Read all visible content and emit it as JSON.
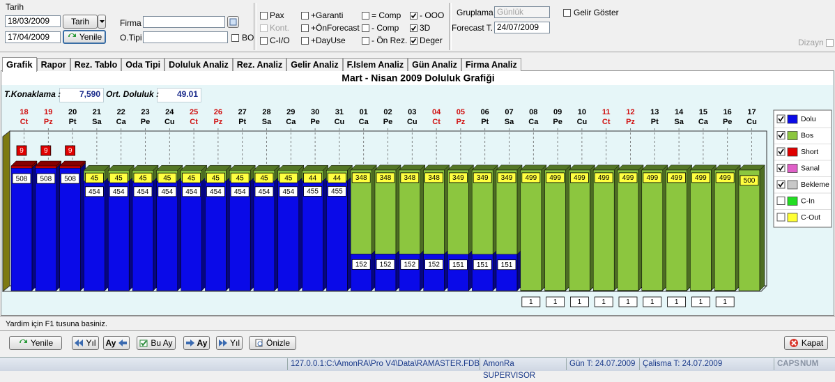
{
  "toolbar": {
    "date_label": "Tarih",
    "date_from": "18/03/2009",
    "date_to": "17/04/2009",
    "date_button": "Tarih",
    "refresh_button": "Yenile",
    "firma_label": "Firma",
    "otipi_label": "O.Tipi",
    "bo_label": "BO",
    "options": [
      {
        "label": "Pax",
        "checked": false,
        "enabled": true
      },
      {
        "label": "Kont.",
        "checked": false,
        "enabled": false
      },
      {
        "label": "C-I/O",
        "checked": false,
        "enabled": true
      },
      {
        "label": "+Garanti",
        "checked": false,
        "enabled": true
      },
      {
        "label": "+ÖnForecast",
        "checked": false,
        "enabled": true
      },
      {
        "label": "+DayUse",
        "checked": false,
        "enabled": true
      },
      {
        "label": "= Comp",
        "checked": false,
        "enabled": true
      },
      {
        "label": "- Comp",
        "checked": false,
        "enabled": true
      },
      {
        "label": "- Ön Rez.",
        "checked": false,
        "enabled": true
      },
      {
        "label": "- OOO",
        "checked": true,
        "enabled": true
      },
      {
        "label": "3D",
        "checked": true,
        "enabled": true
      },
      {
        "label": "Deger",
        "checked": true,
        "enabled": true
      }
    ],
    "grouping_label": "Gruplama",
    "grouping_value": "Günlük",
    "revenue_label": "Gelir Göster",
    "forecast_label": "Forecast T.",
    "forecast_date": "24/07/2009",
    "design_label": "Dizayn"
  },
  "tabs": [
    {
      "label": "Grafik",
      "selected": true
    },
    {
      "label": "Rapor",
      "selected": false
    },
    {
      "label": "Rez. Tablo",
      "selected": false
    },
    {
      "label": "Oda Tipi",
      "selected": false
    },
    {
      "label": "Doluluk Analiz",
      "selected": false
    },
    {
      "label": "Rez. Analiz",
      "selected": false
    },
    {
      "label": "Gelir Analiz",
      "selected": false
    },
    {
      "label": "F.Islem Analiz",
      "selected": false
    },
    {
      "label": "Gün Analiz",
      "selected": false
    },
    {
      "label": "Firma Analiz",
      "selected": false
    }
  ],
  "chart": {
    "type": "bar3d_stacked",
    "title": "Mart - Nisan 2009 Doluluk Grafiği",
    "stats": [
      {
        "label": "T.Konaklama :",
        "value": "7,590"
      },
      {
        "label": "Ort. Doluluk :",
        "value": "49.01"
      }
    ],
    "days": [
      {
        "day": "18",
        "weekday": "Ct",
        "color": "#d01010"
      },
      {
        "day": "19",
        "weekday": "Pz",
        "color": "#d01010"
      },
      {
        "day": "20",
        "weekday": "Pt",
        "color": "#000000"
      },
      {
        "day": "21",
        "weekday": "Sa",
        "color": "#000000"
      },
      {
        "day": "22",
        "weekday": "Ca",
        "color": "#000000"
      },
      {
        "day": "23",
        "weekday": "Pe",
        "color": "#000000"
      },
      {
        "day": "24",
        "weekday": "Cu",
        "color": "#000000"
      },
      {
        "day": "25",
        "weekday": "Ct",
        "color": "#d01010"
      },
      {
        "day": "26",
        "weekday": "Pz",
        "color": "#d01010"
      },
      {
        "day": "27",
        "weekday": "Pt",
        "color": "#000000"
      },
      {
        "day": "28",
        "weekday": "Sa",
        "color": "#000000"
      },
      {
        "day": "29",
        "weekday": "Ca",
        "color": "#000000"
      },
      {
        "day": "30",
        "weekday": "Pe",
        "color": "#000000"
      },
      {
        "day": "31",
        "weekday": "Cu",
        "color": "#000000"
      },
      {
        "day": "01",
        "weekday": "Ca",
        "color": "#000000"
      },
      {
        "day": "02",
        "weekday": "Pe",
        "color": "#000000"
      },
      {
        "day": "03",
        "weekday": "Cu",
        "color": "#000000"
      },
      {
        "day": "04",
        "weekday": "Ct",
        "color": "#d01010"
      },
      {
        "day": "05",
        "weekday": "Pz",
        "color": "#d01010"
      },
      {
        "day": "06",
        "weekday": "Pt",
        "color": "#000000"
      },
      {
        "day": "07",
        "weekday": "Sa",
        "color": "#000000"
      },
      {
        "day": "08",
        "weekday": "Ca",
        "color": "#000000"
      },
      {
        "day": "09",
        "weekday": "Pe",
        "color": "#000000"
      },
      {
        "day": "10",
        "weekday": "Cu",
        "color": "#000000"
      },
      {
        "day": "11",
        "weekday": "Ct",
        "color": "#d01010"
      },
      {
        "day": "12",
        "weekday": "Pz",
        "color": "#d01010"
      },
      {
        "day": "13",
        "weekday": "Pt",
        "color": "#000000"
      },
      {
        "day": "14",
        "weekday": "Sa",
        "color": "#000000"
      },
      {
        "day": "15",
        "weekday": "Ca",
        "color": "#000000"
      },
      {
        "day": "16",
        "weekday": "Pe",
        "color": "#000000"
      },
      {
        "day": "17",
        "weekday": "Cu",
        "color": "#000000"
      }
    ],
    "series": [
      {
        "name": "Dolu",
        "color": "#0a0ae8",
        "checked": true,
        "label_fill": "#ffffff",
        "label_text_color": "#000000",
        "values": [
          508,
          508,
          508,
          454,
          454,
          454,
          454,
          454,
          454,
          454,
          454,
          454,
          455,
          455,
          152,
          152,
          152,
          152,
          151,
          151,
          151,
          1,
          1,
          1,
          1,
          1,
          1,
          1,
          1,
          1,
          null
        ]
      },
      {
        "name": "Bos",
        "color": "#8cc63f",
        "checked": true,
        "label_fill": "#ffff40",
        "label_text_color": "#000000",
        "values": [
          null,
          null,
          null,
          45,
          45,
          45,
          45,
          45,
          45,
          45,
          45,
          45,
          44,
          44,
          348,
          348,
          348,
          348,
          349,
          349,
          349,
          499,
          499,
          499,
          499,
          499,
          499,
          499,
          499,
          499,
          500
        ]
      },
      {
        "name": "Short",
        "color": "#e00000",
        "checked": true,
        "label_fill": "#e00000",
        "label_text_color": "#ffffff",
        "values": [
          9,
          9,
          9,
          null,
          null,
          null,
          null,
          null,
          null,
          null,
          null,
          null,
          null,
          null,
          null,
          null,
          null,
          null,
          null,
          null,
          null,
          null,
          null,
          null,
          null,
          null,
          null,
          null,
          null,
          null,
          null
        ]
      },
      {
        "name": "Sanal",
        "color": "#e060c8",
        "checked": true,
        "label_fill": "#ffffff",
        "label_text_color": "#000000",
        "values": [
          null,
          null,
          null,
          null,
          null,
          null,
          null,
          null,
          null,
          null,
          null,
          null,
          null,
          null,
          null,
          null,
          null,
          null,
          null,
          null,
          null,
          null,
          null,
          null,
          null,
          null,
          null,
          null,
          null,
          null,
          null
        ]
      },
      {
        "name": "Bekleme",
        "color": "#c8c8c8",
        "checked": true,
        "label_fill": "#ffffff",
        "label_text_color": "#000000",
        "values": [
          null,
          null,
          null,
          null,
          null,
          null,
          null,
          null,
          null,
          null,
          null,
          null,
          null,
          null,
          null,
          null,
          null,
          null,
          null,
          null,
          null,
          null,
          null,
          null,
          null,
          null,
          null,
          null,
          null,
          null,
          null
        ]
      },
      {
        "name": "C-In",
        "color": "#22dd22",
        "checked": false,
        "label_fill": "#ffffff",
        "label_text_color": "#000000",
        "values": [
          null,
          null,
          null,
          null,
          null,
          null,
          null,
          null,
          null,
          null,
          null,
          null,
          null,
          null,
          null,
          null,
          null,
          null,
          null,
          null,
          null,
          null,
          null,
          null,
          null,
          null,
          null,
          null,
          null,
          null,
          null
        ]
      },
      {
        "name": "C-Out",
        "color": "#ffff33",
        "checked": false,
        "label_fill": "#ffffff",
        "label_text_color": "#000000",
        "values": [
          null,
          null,
          null,
          null,
          null,
          null,
          null,
          null,
          null,
          null,
          null,
          null,
          null,
          null,
          null,
          null,
          null,
          null,
          null,
          null,
          null,
          null,
          null,
          null,
          null,
          null,
          null,
          null,
          null,
          null,
          null
        ]
      }
    ]
  },
  "status": {
    "help": "Yardim için F1 tusuna basiniz.",
    "buttons": [
      "Yenile",
      "Yıl",
      "Ay",
      "Bu Ay",
      "Ay",
      "Yıl",
      "Önizle",
      "Kapat"
    ],
    "footer": [
      "127.0.0.1:C:\\AmonRA\\Pro V4\\Data\\RAMASTER.FDB",
      "AmonRa SUPERVISOR",
      "Gün T: 24.07.2009",
      "Çalisma T: 24.07.2009",
      "CAPS",
      "NUM"
    ]
  }
}
